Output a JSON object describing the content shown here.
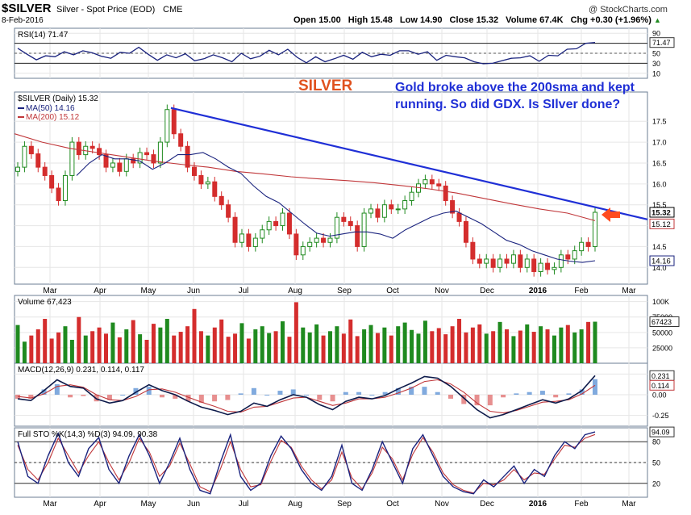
{
  "header": {
    "symbol": "$SILVER",
    "description": "Silver - Spot Price (EOD)",
    "exchange": "CME",
    "date": "8-Feb-2016",
    "watermark": "@ StockCharts.com",
    "quote": {
      "open_label": "Open",
      "open": "15.00",
      "high_label": "High",
      "high": "15.48",
      "low_label": "Low",
      "low": "14.90",
      "close_label": "Close",
      "close": "15.32",
      "volume_label": "Volume",
      "volume": "67.4K",
      "chg_label": "Chg",
      "chg": "+0.30 (+1.96%)",
      "chg_arrow": "▲"
    }
  },
  "annotations": {
    "silver_title": "SILVER",
    "comment_line1": "Gold broke above the 200sma and kept",
    "comment_line2": "running.  So did GDX.  Is SIlver done?"
  },
  "x_axis_labels": [
    "Mar",
    "Apr",
    "May",
    "Jun",
    "Jul",
    "Aug",
    "Sep",
    "Oct",
    "Nov",
    "Dec",
    "2016",
    "Feb",
    "Mar"
  ],
  "colors": {
    "up": "#1f8a1f",
    "down": "#d42d2d",
    "ma50": "#1a237e",
    "ma200": "#c0373a",
    "trendline": "#1f2fd6",
    "annotation_red": "#e0521f",
    "annotation_blue": "#1f2fd6",
    "rsi_line": "#1a237e",
    "rsi_fill": "#1f2fd6",
    "sto_k": "#1a237e",
    "sto_d": "#c0373a",
    "macd_hist": "#6a9bd8",
    "grid": "#e6e6e6"
  },
  "chart_data": [
    {
      "id": "rsi",
      "type": "line",
      "legend": "RSI(14) 71.47",
      "ylim": [
        0,
        100
      ],
      "ticks": [
        90,
        70,
        50,
        30,
        10
      ],
      "reference_lines": [
        70,
        50,
        30
      ],
      "current_value": 71.47,
      "series": [
        {
          "name": "RSI(14)",
          "values": [
            60,
            48,
            37,
            45,
            43,
            53,
            47,
            55,
            51,
            44,
            40,
            52,
            50,
            62,
            48,
            36,
            47,
            41,
            49,
            35,
            39,
            47,
            41,
            33,
            50,
            39,
            44,
            56,
            47,
            58,
            42,
            31,
            43,
            33,
            39,
            46,
            38,
            52,
            43,
            48,
            46,
            55,
            55,
            48,
            53,
            36,
            46,
            43,
            41,
            33,
            29,
            30,
            35,
            40,
            41,
            45,
            34,
            46,
            45,
            58,
            59,
            70,
            71.47
          ]
        }
      ]
    },
    {
      "id": "price",
      "type": "candlestick",
      "legend": "$SILVER (Daily) 15.32",
      "ylim": [
        13.6,
        18.2
      ],
      "ticks": [
        17.5,
        17.0,
        16.5,
        16.0,
        15.5,
        15.0,
        14.5,
        14.0
      ],
      "price_labels": [
        {
          "text": "15.32",
          "value": 15.32,
          "style": "outlined"
        },
        {
          "text": "15.12",
          "value": 15.12,
          "style": "red"
        },
        {
          "text": "14.16",
          "value": 14.16,
          "style": "blue"
        }
      ],
      "close": [
        16.4,
        16.9,
        16.72,
        16.4,
        16.2,
        15.9,
        15.6,
        16.2,
        17.0,
        16.7,
        16.9,
        16.85,
        16.7,
        16.4,
        16.5,
        16.3,
        16.6,
        16.5,
        16.75,
        16.7,
        16.5,
        17.0,
        17.78,
        17.2,
        16.9,
        16.4,
        16.2,
        16.0,
        16.05,
        15.7,
        15.5,
        15.2,
        14.6,
        14.8,
        14.5,
        14.7,
        14.9,
        15.1,
        15.0,
        15.3,
        14.8,
        14.3,
        14.5,
        14.6,
        14.7,
        14.6,
        14.7,
        15.2,
        15.1,
        15.0,
        14.5,
        15.3,
        15.4,
        15.2,
        15.5,
        15.4,
        15.4,
        15.6,
        15.8,
        16.0,
        16.1,
        16.0,
        15.95,
        15.6,
        15.3,
        15.1,
        14.6,
        14.2,
        14.1,
        14.2,
        14.0,
        14.2,
        14.1,
        14.3,
        14.0,
        14.2,
        13.9,
        14.1,
        13.95,
        14.0,
        14.3,
        14.2,
        14.4,
        14.6,
        14.5,
        15.32
      ],
      "series": [
        {
          "name": "MA(50)",
          "value": 14.16,
          "values": [
            16.2,
            16.5,
            16.7,
            16.6,
            16.6,
            16.55,
            16.35,
            16.5,
            16.7,
            16.7,
            16.75,
            16.6,
            16.4,
            16.25,
            15.95,
            15.7,
            15.55,
            15.3,
            15.05,
            14.82,
            14.75,
            14.8,
            14.85,
            14.85,
            14.8,
            14.7,
            14.9,
            15.05,
            15.2,
            15.3,
            15.35,
            15.2,
            15.05,
            14.85,
            14.65,
            14.55,
            14.4,
            14.3,
            14.2,
            14.15,
            14.12,
            14.16
          ]
        },
        {
          "name": "MA(200)",
          "value": 15.12,
          "values": [
            17.2,
            17.0,
            16.85,
            16.75,
            16.65,
            16.55,
            16.47,
            16.4,
            16.3,
            16.24,
            16.17,
            16.12,
            16.08,
            16.03,
            15.96,
            15.88,
            15.78,
            15.65,
            15.52,
            15.4,
            15.3,
            15.12
          ]
        },
        {
          "name": "Trendline",
          "values": [
            17.82,
            15.22
          ]
        }
      ]
    },
    {
      "id": "volume",
      "type": "bar",
      "legend": "Volume 67,423",
      "ylim": [
        0,
        110000
      ],
      "ticks": [
        "100K",
        "75000",
        "50000",
        "25000"
      ],
      "current_label": "67423",
      "values": [
        62,
        35,
        45,
        55,
        72,
        40,
        50,
        60,
        38,
        75,
        45,
        52,
        58,
        48,
        66,
        42,
        55,
        70,
        47,
        38,
        64,
        58,
        72,
        45,
        51,
        60,
        88,
        52,
        45,
        58,
        71,
        43,
        48,
        65,
        40,
        55,
        60,
        49,
        52,
        68,
        43,
        99,
        58,
        50,
        63,
        45,
        52,
        60,
        48,
        71,
        44,
        55,
        62,
        49,
        58,
        45,
        60,
        66,
        54,
        48,
        69,
        52,
        57,
        47,
        60,
        72,
        50,
        58,
        63,
        48,
        52,
        67,
        55,
        44,
        53,
        63,
        51,
        60,
        55,
        45,
        58,
        62,
        50,
        55,
        67,
        67.4
      ]
    },
    {
      "id": "macd",
      "type": "line",
      "legend": "MACD(12,26,9) 0.231, 0.114, 0.117",
      "ylim": [
        -0.38,
        0.38
      ],
      "ticks": [
        "0.25",
        "0.00",
        "-0.25"
      ],
      "current_values": [
        "0.231",
        "0.114"
      ],
      "series": [
        {
          "name": "MACD",
          "values": [
            -0.05,
            -0.07,
            0.05,
            0.18,
            0.1,
            0.08,
            -0.05,
            -0.1,
            -0.07,
            0.03,
            0.12,
            0.05,
            0.0,
            -0.08,
            -0.15,
            -0.19,
            -0.24,
            -0.2,
            -0.1,
            -0.14,
            -0.06,
            0.0,
            -0.03,
            -0.12,
            -0.18,
            -0.08,
            -0.03,
            -0.05,
            -0.01,
            0.07,
            0.14,
            0.22,
            0.2,
            0.1,
            -0.04,
            -0.18,
            -0.28,
            -0.24,
            -0.18,
            -0.12,
            -0.06,
            -0.1,
            -0.05,
            0.05,
            0.231
          ]
        },
        {
          "name": "Signal",
          "values": [
            -0.02,
            -0.04,
            0.01,
            0.1,
            0.12,
            0.09,
            0.0,
            -0.06,
            -0.07,
            -0.02,
            0.06,
            0.07,
            0.03,
            -0.03,
            -0.09,
            -0.14,
            -0.2,
            -0.21,
            -0.15,
            -0.14,
            -0.09,
            -0.04,
            -0.03,
            -0.08,
            -0.13,
            -0.1,
            -0.05,
            -0.05,
            -0.03,
            0.02,
            0.08,
            0.16,
            0.18,
            0.13,
            0.03,
            -0.1,
            -0.2,
            -0.22,
            -0.19,
            -0.14,
            -0.09,
            -0.08,
            -0.06,
            0.01,
            0.114
          ]
        }
      ]
    },
    {
      "id": "sto",
      "type": "line",
      "legend": "Full STO %K(14,3) %D(3) 94.09, 90.38",
      "ylim": [
        0,
        100
      ],
      "ticks": [
        80,
        50,
        20
      ],
      "reference_lines": [
        80,
        50,
        20
      ],
      "current_values": [
        "94.09"
      ],
      "series": [
        {
          "name": "%K",
          "values": [
            80,
            30,
            20,
            60,
            92,
            50,
            30,
            70,
            86,
            40,
            20,
            60,
            90,
            60,
            20,
            50,
            85,
            40,
            10,
            5,
            50,
            90,
            30,
            10,
            20,
            60,
            88,
            70,
            40,
            20,
            10,
            30,
            75,
            20,
            10,
            40,
            80,
            50,
            20,
            70,
            90,
            60,
            30,
            15,
            8,
            5,
            25,
            15,
            30,
            45,
            20,
            40,
            30,
            60,
            80,
            70,
            90,
            94.09
          ]
        },
        {
          "name": "%D",
          "values": [
            75,
            40,
            25,
            50,
            85,
            60,
            35,
            60,
            80,
            50,
            25,
            50,
            85,
            65,
            30,
            45,
            78,
            48,
            15,
            8,
            40,
            80,
            40,
            15,
            18,
            52,
            82,
            72,
            45,
            25,
            12,
            25,
            65,
            28,
            12,
            35,
            72,
            55,
            25,
            62,
            86,
            65,
            35,
            18,
            10,
            6,
            20,
            18,
            25,
            40,
            25,
            35,
            33,
            55,
            75,
            72,
            85,
            90.38
          ]
        }
      ]
    }
  ]
}
